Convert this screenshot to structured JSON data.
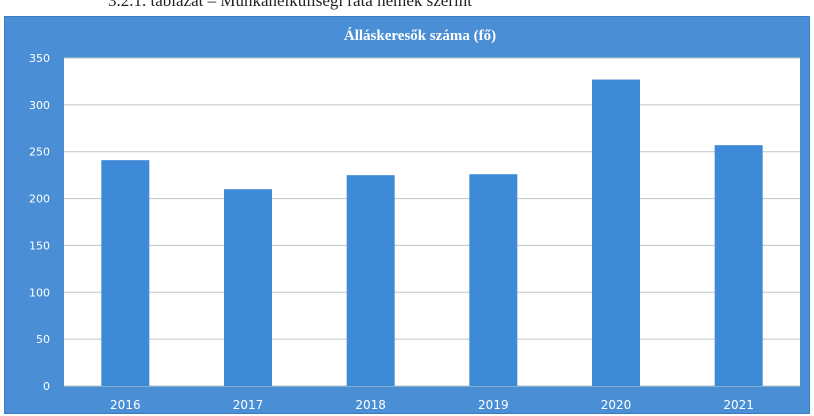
{
  "caption": "3.2.1. táblázat – Munkanélküliségi ráta nemek szerint",
  "colors": {
    "frame": "#4a8fd6",
    "bar": "#3f8ad8",
    "plot_bg": "#ffffff",
    "gridline": "#bfc4c8"
  },
  "chart_data": {
    "type": "bar",
    "title": "Álláskeresők száma (fő)",
    "categories": [
      "2016",
      "2017",
      "2018",
      "2019",
      "2020",
      "2021"
    ],
    "values": [
      241,
      210,
      225,
      226,
      327,
      257
    ],
    "ylim": [
      0,
      350
    ],
    "yticks": [
      0,
      50,
      100,
      150,
      200,
      250,
      300,
      350
    ],
    "xlabel": "",
    "ylabel": "",
    "grid": true,
    "legend": "none"
  }
}
